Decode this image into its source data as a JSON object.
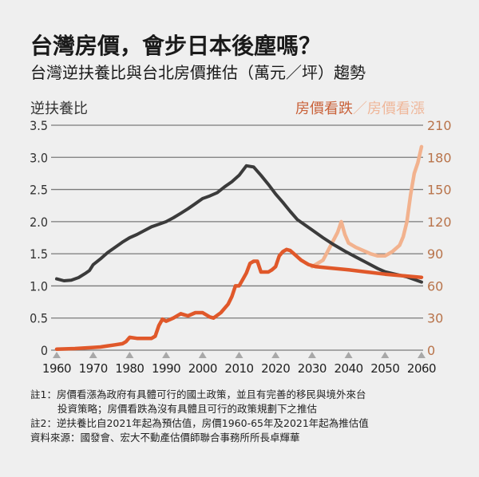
{
  "header": {
    "title": "台灣房價，會步日本後塵嗎？",
    "subtitle": "台灣逆扶養比與台北房價推估（萬元／坪）趨勢"
  },
  "axis_titles": {
    "left": "逆扶養比",
    "right_down": "房價看跌",
    "right_separator": "／",
    "right_up": "房價看漲"
  },
  "colors": {
    "ratio": "#3b3b3b",
    "price_down": "#e0582a",
    "price_up": "#f2b28e",
    "right_axis": "#b8734a",
    "grid": "#7a7a7a",
    "tick_marker": "#a8a8a8"
  },
  "chart_data": {
    "type": "line",
    "title": "台灣逆扶養比與台北房價推估（萬元／坪）趨勢",
    "xlabel": "",
    "ylabel": "逆扶養比",
    "y2label": "房價看跌／房價看漲",
    "xlim": [
      1960,
      2060
    ],
    "ylim": [
      0,
      3.5
    ],
    "y2lim": [
      0,
      210
    ],
    "grid": true,
    "x_ticks": [
      "1960",
      "1970",
      "1980",
      "1990",
      "2000",
      "2010",
      "2020",
      "2030",
      "2040",
      "2050",
      "2060"
    ],
    "y_ticks": [
      "0",
      "0.5",
      "1.0",
      "1.5",
      "2.0",
      "2.5",
      "3.0",
      "3.5"
    ],
    "y2_ticks": [
      "0",
      "30",
      "60",
      "90",
      "120",
      "150",
      "180",
      "210"
    ],
    "series": [
      {
        "name": "逆扶養比",
        "axis": "left",
        "x": [
          1960,
          1962,
          1964,
          1966,
          1968,
          1969,
          1970,
          1972,
          1974,
          1976,
          1978,
          1980,
          1982,
          1984,
          1986,
          1988,
          1990,
          1992,
          1994,
          1996,
          1998,
          2000,
          2002,
          2004,
          2006,
          2008,
          2010,
          2012,
          2014,
          2016,
          2018,
          2020,
          2022,
          2024,
          2026,
          2028,
          2030,
          2033,
          2036,
          2039,
          2042,
          2045,
          2048,
          2050,
          2053,
          2056,
          2058,
          2060
        ],
        "values": [
          1.11,
          1.08,
          1.09,
          1.13,
          1.2,
          1.24,
          1.33,
          1.42,
          1.52,
          1.6,
          1.68,
          1.75,
          1.8,
          1.86,
          1.92,
          1.96,
          2.0,
          2.06,
          2.13,
          2.2,
          2.28,
          2.36,
          2.4,
          2.45,
          2.54,
          2.62,
          2.72,
          2.87,
          2.85,
          2.72,
          2.58,
          2.43,
          2.3,
          2.16,
          2.03,
          1.95,
          1.87,
          1.75,
          1.64,
          1.54,
          1.45,
          1.36,
          1.27,
          1.22,
          1.18,
          1.14,
          1.1,
          1.06
        ]
      },
      {
        "name": "房價看跌",
        "axis": "right",
        "x": [
          1960,
          1965,
          1970,
          1972,
          1974,
          1976,
          1978,
          1979,
          1980,
          1982,
          1984,
          1986,
          1987,
          1988,
          1989,
          1990,
          1992,
          1994,
          1995,
          1996,
          1998,
          2000,
          2002,
          2003,
          2005,
          2007,
          2008,
          2009,
          2010,
          2011,
          2012,
          2013,
          2014,
          2015,
          2016,
          2018,
          2019,
          2020,
          2021,
          2022,
          2023,
          2024,
          2025,
          2027,
          2029,
          2031,
          2034,
          2040,
          2045,
          2050,
          2055,
          2060
        ],
        "values": [
          1,
          1.5,
          2.5,
          3,
          4,
          5,
          6,
          8,
          12,
          11,
          11,
          11,
          13,
          23,
          29,
          27,
          30,
          34,
          33,
          32,
          35,
          35,
          31,
          30,
          35,
          43,
          50,
          60,
          60,
          66,
          72,
          81,
          83,
          83,
          73,
          73,
          75,
          78,
          88,
          92,
          94,
          93,
          90,
          84,
          80,
          78,
          77,
          75,
          73,
          71,
          69.5,
          68
        ]
      },
      {
        "name": "房價看漲",
        "axis": "right",
        "x": [
          2030,
          2031,
          2033,
          2035,
          2037,
          2038,
          2039,
          2040,
          2042,
          2044,
          2046,
          2048,
          2049,
          2050,
          2052,
          2054,
          2055,
          2056,
          2057,
          2058,
          2059,
          2060
        ],
        "values": [
          78,
          80,
          84,
          97,
          110,
          120,
          108,
          100,
          96,
          93,
          90,
          88,
          88,
          88,
          92,
          98,
          106,
          120,
          145,
          165,
          175,
          190
        ]
      }
    ]
  },
  "notes": {
    "note1_line1": "註1：房價看漲為政府有具體可行的國土政策，並且有完善的移民與境外來台",
    "note1_line2": "投資策略；房價看跌為沒有具體且可行的政策規劃下之推估",
    "note2": "註2：逆扶養比自2021年起為預估值，房價1960-65年及2021年起為推估值",
    "source": "資料來源：國發會、宏大不動產估價師聯合事務所所長卓輝華"
  }
}
